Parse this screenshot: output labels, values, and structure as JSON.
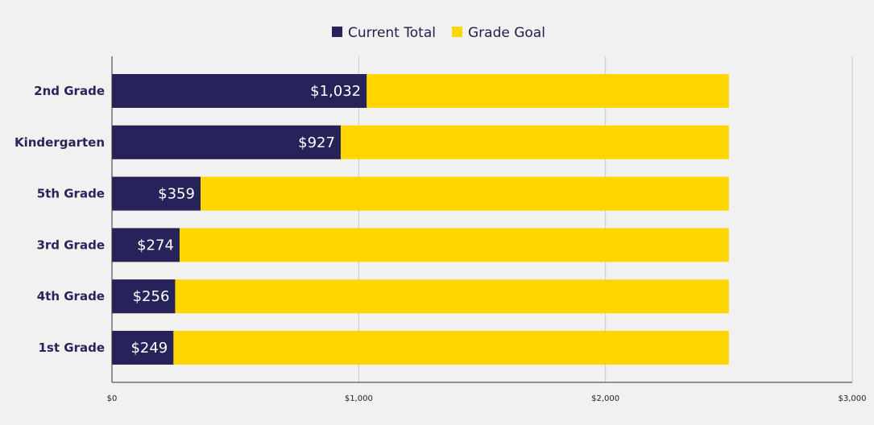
{
  "chart_data": {
    "type": "bar",
    "orientation": "horizontal",
    "stacked": "overlay",
    "categories": [
      "2nd Grade",
      "Kindergarten",
      "5th Grade",
      "3rd Grade",
      "4th Grade",
      "1st Grade"
    ],
    "series": [
      {
        "name": "Current Total",
        "color": "#25235a",
        "values": [
          1032,
          927,
          359,
          274,
          256,
          249
        ]
      },
      {
        "name": "Grade Goal",
        "color": "#ffd600",
        "values": [
          2500,
          2500,
          2500,
          2500,
          2500,
          2500
        ]
      }
    ],
    "data_labels": [
      "$1,032",
      "$927",
      "$359",
      "$274",
      "$256",
      "$249"
    ],
    "xlim": [
      0,
      3000
    ],
    "x_ticks": [
      0,
      1000,
      2000,
      3000
    ],
    "x_tick_labels": [
      "$0",
      "$1,000",
      "$2,000",
      "$3,000"
    ],
    "grid": true,
    "legend_position": "top-center",
    "title": "",
    "xlabel": "",
    "ylabel": ""
  }
}
